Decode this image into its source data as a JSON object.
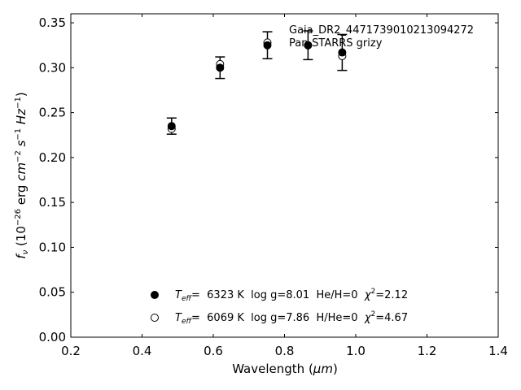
{
  "chart_data": {
    "type": "scatter",
    "xlabel_main": "Wavelength (",
    "xlabel_unit": "μm",
    "xlabel_close": ")",
    "ylabel": {
      "f": "f",
      "nu": "ν",
      "open": " (10",
      "exp1": "−26",
      "erg": " erg ",
      "cm": "cm",
      "exp2": "−2",
      "s": " s",
      "exp3": "−1",
      "hz": " Hz",
      "exp4": "−1",
      "close": ")"
    },
    "xlim": [
      0.2,
      1.4
    ],
    "ylim": [
      0.0,
      0.36
    ],
    "xticks": [
      0.2,
      0.4,
      0.6,
      0.8,
      1.0,
      1.2,
      1.4
    ],
    "yticks": [
      0.0,
      0.05,
      0.1,
      0.15,
      0.2,
      0.25,
      0.3,
      0.35
    ],
    "xtick_labels": [
      "0.2",
      "0.4",
      "0.6",
      "0.8",
      "1.0",
      "1.2",
      "1.4"
    ],
    "ytick_labels": [
      "0.00",
      "0.05",
      "0.10",
      "0.15",
      "0.20",
      "0.25",
      "0.30",
      "0.35"
    ],
    "annotation": {
      "line1": "Gaia_DR2_4471739010213094272",
      "line2": "Pan-STARRS grizy"
    },
    "observed": {
      "x": [
        0.483,
        0.619,
        0.752,
        0.866,
        0.962
      ],
      "y": [
        0.235,
        0.3,
        0.325,
        0.325,
        0.317
      ],
      "err": [
        0.009,
        0.012,
        0.015,
        0.016,
        0.02
      ]
    },
    "series": [
      {
        "marker": "filled",
        "x": [
          0.483,
          0.619,
          0.752,
          0.866,
          0.962
        ],
        "y": [
          0.235,
          0.3,
          0.325,
          0.325,
          0.317
        ],
        "legend": {
          "t": "T",
          "sub": "eff",
          "text1": "=  6323 K  log g=8.01  He/H=0  ",
          "chi": "χ",
          "sup": "2",
          "text2": "=2.12"
        }
      },
      {
        "marker": "open",
        "x": [
          0.483,
          0.619,
          0.752,
          0.866,
          0.962
        ],
        "y": [
          0.232,
          0.304,
          0.328,
          0.325,
          0.313
        ],
        "legend": {
          "t": "T",
          "sub": "eff",
          "text1": "=  6069 K  log g=7.86  H/He=0  ",
          "chi": "χ",
          "sup": "2",
          "text2": "=4.67"
        }
      }
    ]
  }
}
